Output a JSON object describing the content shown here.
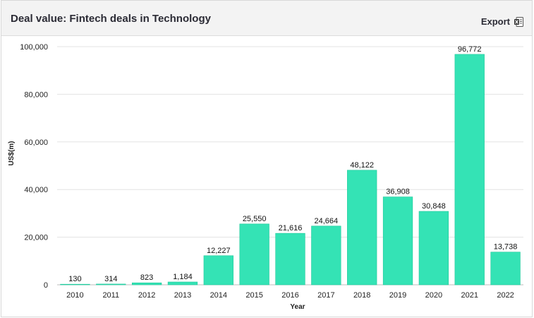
{
  "header": {
    "title": "Deal value: Fintech deals in Technology",
    "export_label": "Export",
    "export_icon": "excel-file-icon"
  },
  "chart_data": {
    "type": "bar",
    "categories": [
      "2010",
      "2011",
      "2012",
      "2013",
      "2014",
      "2015",
      "2016",
      "2017",
      "2018",
      "2019",
      "2020",
      "2021",
      "2022"
    ],
    "values": [
      130,
      314,
      823,
      1184,
      12227,
      25550,
      21616,
      24664,
      48122,
      36908,
      30848,
      96772,
      13738
    ],
    "value_labels": [
      "130",
      "314",
      "823",
      "1,184",
      "12,227",
      "25,550",
      "21,616",
      "24,664",
      "48,122",
      "36,908",
      "30,848",
      "96,772",
      "13,738"
    ],
    "yticks": [
      0,
      20000,
      40000,
      60000,
      80000,
      100000
    ],
    "ytick_labels": [
      "0",
      "20,000",
      "40,000",
      "60,000",
      "80,000",
      "100,000"
    ],
    "ylim": [
      0,
      100000
    ],
    "xlabel": "Year",
    "ylabel": "US$(m)",
    "bar_color": "#34e3b5",
    "bar_border_color": "#20c99b",
    "grid": true
  }
}
